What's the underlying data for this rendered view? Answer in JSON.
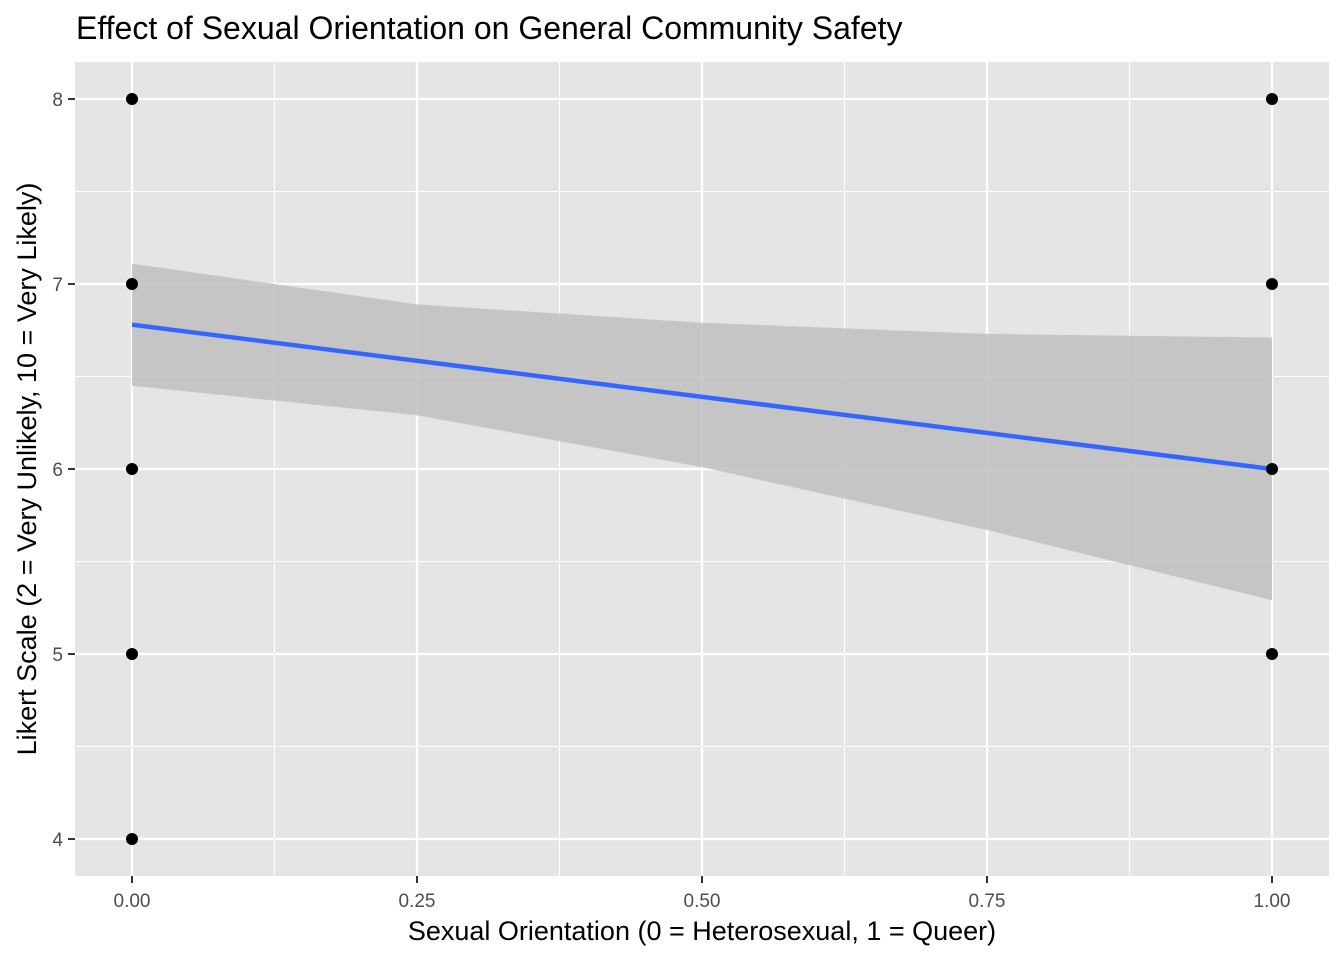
{
  "chart_data": {
    "type": "scatter",
    "title": "Effect of Sexual Orientation on General Community Safety",
    "xlabel": "Sexual Orientation (0 = Heterosexual, 1 = Queer)",
    "ylabel": "Likert Scale (2 = Very Unlikely, 10 = Very Likely)",
    "xlim": [
      -0.05,
      1.05
    ],
    "ylim": [
      3.8,
      8.2
    ],
    "xticks": [
      0,
      0.25,
      0.5,
      0.75,
      1
    ],
    "xtick_labels": [
      "0.00",
      "0.25",
      "0.50",
      "0.75",
      "1.00"
    ],
    "yticks": [
      4,
      5,
      6,
      7,
      8
    ],
    "ytick_labels": [
      "4",
      "5",
      "6",
      "7",
      "8"
    ],
    "grid": true,
    "points": [
      {
        "x": 0,
        "y": 8
      },
      {
        "x": 0,
        "y": 7
      },
      {
        "x": 0,
        "y": 6
      },
      {
        "x": 0,
        "y": 5
      },
      {
        "x": 0,
        "y": 4
      },
      {
        "x": 1,
        "y": 8
      },
      {
        "x": 1,
        "y": 7
      },
      {
        "x": 1,
        "y": 6
      },
      {
        "x": 1,
        "y": 5
      }
    ],
    "fit_line": {
      "x": [
        0,
        1
      ],
      "y": [
        6.78,
        6.0
      ]
    },
    "confidence_band": {
      "x": [
        0,
        0.25,
        0.5,
        0.75,
        1
      ],
      "upper": [
        7.11,
        6.89,
        6.79,
        6.73,
        6.71
      ],
      "lower": [
        6.45,
        6.29,
        6.01,
        5.67,
        5.29
      ]
    },
    "colors": {
      "panel_background": "#e5e5e5",
      "grid": "#ffffff",
      "points": "#000000",
      "fit_line": "#3366ff",
      "confidence_band": "#bfbfbf"
    }
  }
}
